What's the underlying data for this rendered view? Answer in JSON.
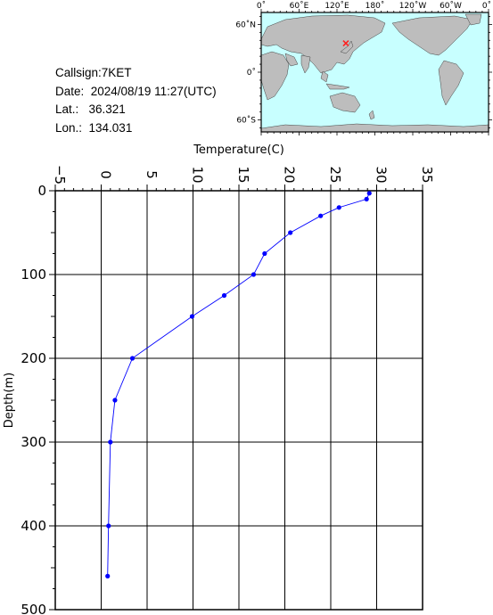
{
  "info": {
    "callsign": "Callsign:7KET",
    "date": "Date:  2024/08/19 11:27(UTC)",
    "lat": "Lat.:   36.321",
    "lon": "Lon.:  134.031"
  },
  "map": {
    "top_labels": [
      "0˚",
      "60˚E",
      "120˚E",
      "180˚",
      "120˚W",
      "60˚W",
      "0˚"
    ],
    "left_labels": [
      "60˚N",
      "0˚",
      "60˚S"
    ],
    "station": {
      "lat": 36.321,
      "lon": 134.031
    },
    "colors": {
      "ocean": "#c8ffff",
      "land": "#bdbdbd",
      "marker": "#ff2020"
    }
  },
  "chart_data": {
    "type": "line",
    "xlabel": "Temperature(C)",
    "ylabel": "Depth(m)",
    "xlim": [
      -5,
      35
    ],
    "ylim": [
      500,
      0
    ],
    "x_ticks": [
      "−5",
      "0",
      "5",
      "10",
      "15",
      "20",
      "25",
      "30",
      "35"
    ],
    "y_ticks": [
      "0",
      "100",
      "200",
      "300",
      "400",
      "500"
    ],
    "grid": true,
    "series": [
      {
        "color": "#0000ff",
        "points": [
          {
            "t": 29.2,
            "d": 3
          },
          {
            "t": 28.9,
            "d": 10
          },
          {
            "t": 25.9,
            "d": 20
          },
          {
            "t": 23.9,
            "d": 30
          },
          {
            "t": 20.6,
            "d": 50
          },
          {
            "t": 17.8,
            "d": 75
          },
          {
            "t": 16.6,
            "d": 100
          },
          {
            "t": 13.4,
            "d": 125
          },
          {
            "t": 9.9,
            "d": 150
          },
          {
            "t": 3.4,
            "d": 200
          },
          {
            "t": 1.5,
            "d": 250
          },
          {
            "t": 1.0,
            "d": 300
          },
          {
            "t": 0.8,
            "d": 400
          },
          {
            "t": 0.7,
            "d": 460
          }
        ]
      }
    ]
  }
}
